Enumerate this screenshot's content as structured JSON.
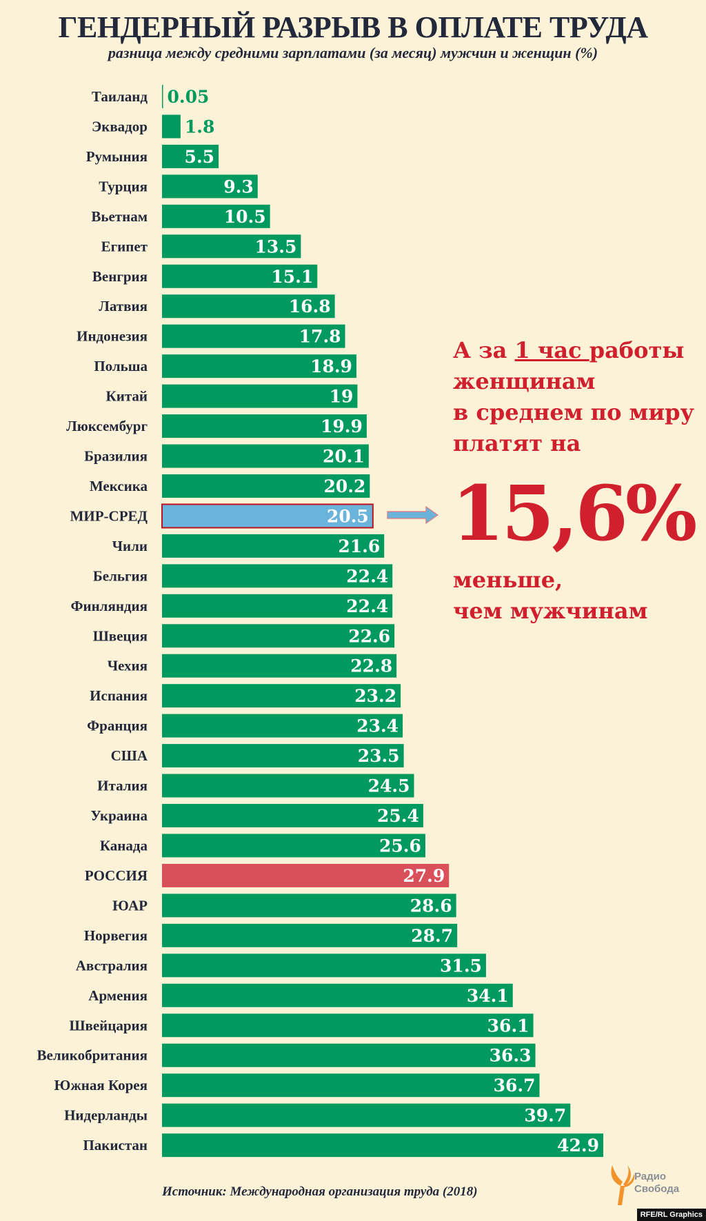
{
  "header": {
    "title": "ГЕНДЕРНЫЙ РАЗРЫВ В ОПЛАТЕ ТРУДА",
    "subtitle": "разница между средними зарплатами (за месяц) мужчин и женщин (%)"
  },
  "chart_data": {
    "type": "bar",
    "orientation": "horizontal",
    "title": "ГЕНДЕРНЫЙ РАЗРЫВ В ОПЛАТЕ ТРУДА",
    "subtitle": "разница между средними зарплатами (за месяц) мужчин и женщин (%)",
    "categories": [
      "Таиланд",
      "Эквадор",
      "Румыния",
      "Турция",
      "Вьетнам",
      "Египет",
      "Венгрия",
      "Латвия",
      "Индонезия",
      "Польша",
      "Китай",
      "Люксембург",
      "Бразилия",
      "Мексика",
      "МИР-СРЕД",
      "Чили",
      "Бельгия",
      "Финляндия",
      "Швеция",
      "Чехия",
      "Испания",
      "Франция",
      "США",
      "Италия",
      "Украина",
      "Канада",
      "РОССИЯ",
      "ЮАР",
      "Норвегия",
      "Австралия",
      "Армения",
      "Швейцария",
      "Великобритания",
      "Южная Корея",
      "Нидерланды",
      "Пакистан"
    ],
    "values": [
      0.05,
      1.8,
      5.5,
      9.3,
      10.5,
      13.5,
      15.1,
      16.8,
      17.8,
      18.9,
      19,
      19.9,
      20.1,
      20.2,
      20.5,
      21.6,
      22.4,
      22.4,
      22.6,
      22.8,
      23.2,
      23.4,
      23.5,
      24.5,
      25.4,
      25.6,
      27.9,
      28.6,
      28.7,
      31.5,
      34.1,
      36.1,
      36.3,
      36.7,
      39.7,
      42.9
    ],
    "value_labels": [
      "0.05",
      "1.8",
      "5.5",
      "9.3",
      "10.5",
      "13.5",
      "15.1",
      "16.8",
      "17.8",
      "18.9",
      "19",
      "19.9",
      "20.1",
      "20.2",
      "20.5",
      "21.6",
      "22.4",
      "22.4",
      "22.6",
      "22.8",
      "23.2",
      "23.4",
      "23.5",
      "24.5",
      "25.4",
      "25.6",
      "27.9",
      "28.6",
      "28.7",
      "31.5",
      "34.1",
      "36.1",
      "36.3",
      "36.7",
      "39.7",
      "42.9"
    ],
    "xlim": [
      0,
      43
    ],
    "grid": false,
    "colors": {
      "default": "#009a5e",
      "highlight_world": "#6ab3db",
      "highlight_world_border": "#c0121e",
      "highlight_russia": "#d9505a"
    },
    "highlights": {
      "МИР-СРЕД": "highlight_world",
      "РОССИЯ": "highlight_russia"
    }
  },
  "callout": {
    "line1_pre": "А за ",
    "line1_underlined": "1 час ",
    "line1_post": "работы",
    "line2": "женщинам",
    "line3": "в среднем по миру",
    "line4": "платят на",
    "big_value": "15,6%",
    "line5": "меньше,",
    "line6": "чем мужчинам",
    "color": "#d0202e",
    "arrow_color": "#6ab3db"
  },
  "footer": {
    "source": "Источник: Международная организация труда (2018)",
    "logo_line1": "Радио",
    "logo_line2": "Свобода",
    "credit": "RFE/RL Graphics"
  }
}
